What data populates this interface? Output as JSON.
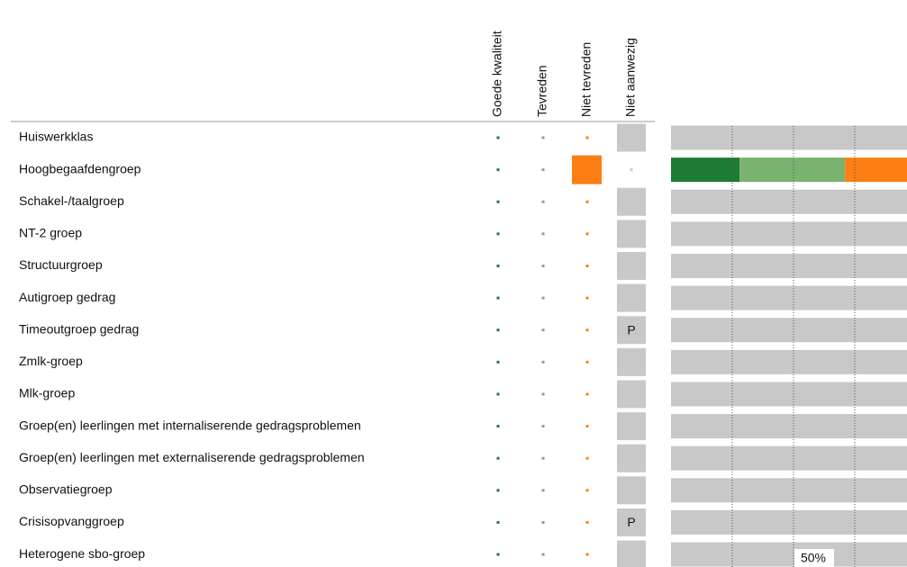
{
  "table": {
    "columns": [
      "Goede kwaliteit",
      "Tevreden",
      "Niet tevreden",
      "Niet aanwezig"
    ],
    "column_colors": [
      "#1e7b34",
      "#7ab26f",
      "#fb7f12"
    ],
    "rows": [
      {
        "label": "Huiswerkklas"
      },
      {
        "label": "Hoogbegaafdengroep",
        "scores": [
          28,
          43,
          29
        ],
        "highlight_column": 2
      },
      {
        "label": "Schakel-/taalgroep"
      },
      {
        "label": "NT-2 groep"
      },
      {
        "label": "Structuurgroep"
      },
      {
        "label": "Autigroep gedrag"
      },
      {
        "label": "Timeoutgroep gedrag",
        "niet_aanwezig": "P"
      },
      {
        "label": "Zmlk-groep"
      },
      {
        "label": "Mlk-groep"
      },
      {
        "label": "Groep(en) leerlingen met internaliserende gedragsproblemen"
      },
      {
        "label": "Groep(en) leerlingen met externaliserende gedragsproblemen"
      },
      {
        "label": "Observatiegroep"
      },
      {
        "label": "Crisisopvanggroep",
        "niet_aanwezig": "P"
      },
      {
        "label": "Heterogene sbo-groep"
      }
    ],
    "xlim": [
      0,
      100
    ],
    "gridlines": [
      25,
      50,
      75
    ],
    "axis_label": {
      "value": 50,
      "label": "50%"
    }
  }
}
